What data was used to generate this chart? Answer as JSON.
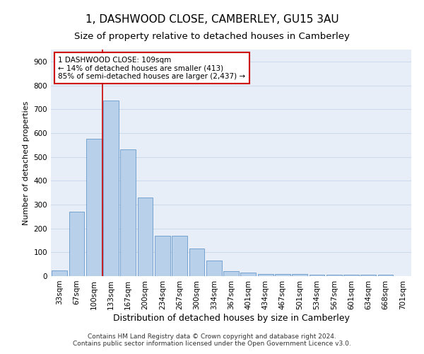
{
  "title": "1, DASHWOOD CLOSE, CAMBERLEY, GU15 3AU",
  "subtitle": "Size of property relative to detached houses in Camberley",
  "xlabel": "Distribution of detached houses by size in Camberley",
  "ylabel": "Number of detached properties",
  "categories": [
    "33sqm",
    "67sqm",
    "100sqm",
    "133sqm",
    "167sqm",
    "200sqm",
    "234sqm",
    "267sqm",
    "300sqm",
    "334sqm",
    "367sqm",
    "401sqm",
    "434sqm",
    "467sqm",
    "501sqm",
    "534sqm",
    "567sqm",
    "601sqm",
    "634sqm",
    "668sqm",
    "701sqm"
  ],
  "values": [
    25,
    270,
    575,
    735,
    530,
    330,
    170,
    170,
    115,
    65,
    20,
    15,
    10,
    10,
    8,
    7,
    5,
    5,
    5,
    7,
    0
  ],
  "bar_color": "#b8d0ea",
  "bar_edge_color": "#6699cc",
  "bar_edge_width": 0.6,
  "vline_x": 2.5,
  "vline_color": "#cc0000",
  "annotation_text": "1 DASHWOOD CLOSE: 109sqm\n← 14% of detached houses are smaller (413)\n85% of semi-detached houses are larger (2,437) →",
  "annotation_box_color": "#ffffff",
  "annotation_box_edge": "#cc0000",
  "ylim": [
    0,
    950
  ],
  "yticks": [
    0,
    100,
    200,
    300,
    400,
    500,
    600,
    700,
    800,
    900
  ],
  "grid_color": "#ccd8ec",
  "background_color": "#e8eef8",
  "footer": "Contains HM Land Registry data © Crown copyright and database right 2024.\nContains public sector information licensed under the Open Government Licence v3.0.",
  "title_fontsize": 11,
  "subtitle_fontsize": 9.5,
  "xlabel_fontsize": 9,
  "ylabel_fontsize": 8,
  "tick_fontsize": 7.5,
  "footer_fontsize": 6.5
}
